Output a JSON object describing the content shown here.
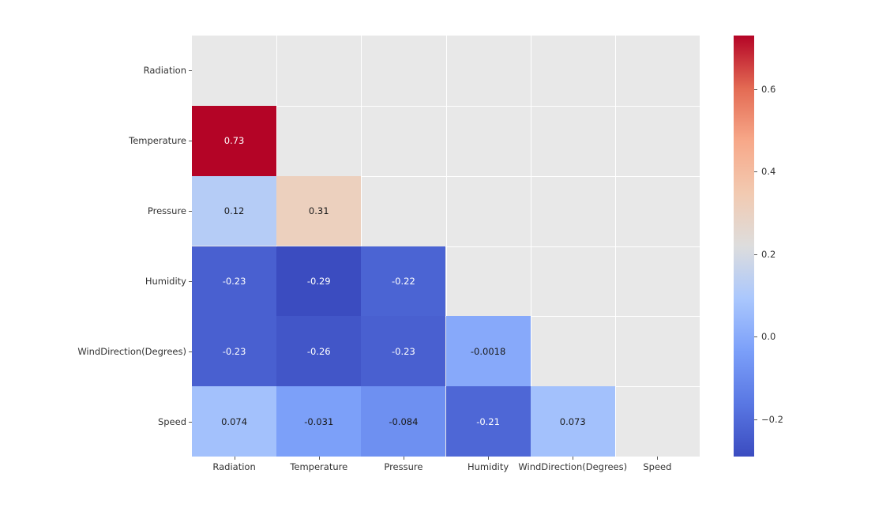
{
  "figure": {
    "background": "#ffffff",
    "plot_background": "#e8e8e8",
    "gridline_color": "#ffffff",
    "tick_color": "#555555",
    "label_color": "#333333"
  },
  "chart_data": {
    "type": "heatmap",
    "title": "",
    "description": "Lower-triangle correlation matrix heatmap with coolwarm colormap",
    "categories": [
      "Radiation",
      "Temperature",
      "Pressure",
      "Humidity",
      "WindDirection(Degrees)",
      "Speed"
    ],
    "matrix": [
      [
        null,
        null,
        null,
        null,
        null,
        null
      ],
      [
        0.73,
        null,
        null,
        null,
        null,
        null
      ],
      [
        0.12,
        0.31,
        null,
        null,
        null,
        null
      ],
      [
        -0.23,
        -0.29,
        -0.22,
        null,
        null,
        null
      ],
      [
        -0.23,
        -0.26,
        -0.23,
        -0.0018,
        null,
        null
      ],
      [
        0.074,
        -0.031,
        -0.084,
        -0.21,
        0.073,
        null
      ]
    ],
    "mask": "upper triangle including diagonal",
    "vmin": -0.29,
    "vmax": 0.73,
    "colormap": "coolwarm",
    "colormap_anchors": [
      {
        "t": 0.0,
        "color": "#3b4cc0"
      },
      {
        "t": 0.125,
        "color": "#5977e3"
      },
      {
        "t": 0.25,
        "color": "#7b9ff9"
      },
      {
        "t": 0.375,
        "color": "#aac7fd"
      },
      {
        "t": 0.5,
        "color": "#dddddd"
      },
      {
        "t": 0.625,
        "color": "#f2cab1"
      },
      {
        "t": 0.75,
        "color": "#f7a889"
      },
      {
        "t": 0.875,
        "color": "#e36a53"
      },
      {
        "t": 1.0,
        "color": "#b40426"
      }
    ],
    "colorbar": {
      "position": "right",
      "ticks": [
        {
          "value": 0.6,
          "label": "0.6"
        },
        {
          "value": 0.4,
          "label": "0.4"
        },
        {
          "value": 0.2,
          "label": "0.2"
        },
        {
          "value": 0.0,
          "label": "0.0"
        },
        {
          "value": -0.2,
          "label": "−0.2"
        }
      ]
    },
    "annotation_text_light": "#ffffff",
    "annotation_text_dark": "#1a1a1a",
    "grid": true,
    "legend": false
  }
}
